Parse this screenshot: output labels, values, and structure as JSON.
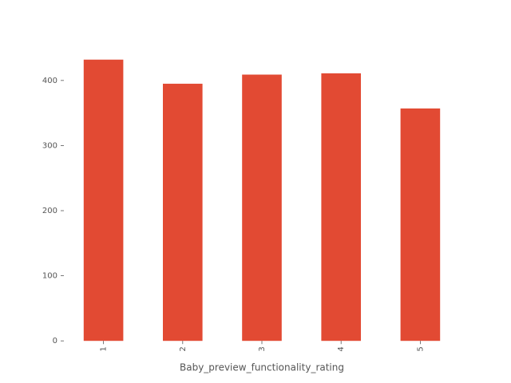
{
  "chart_data": {
    "type": "bar",
    "x_label": "Baby_preview_functionality_rating",
    "categories": [
      "1",
      "2",
      "3",
      "4",
      "5"
    ],
    "values": [
      432,
      395,
      409,
      411,
      357
    ],
    "color": "#E24A33",
    "ylim": [
      0,
      453
    ],
    "yticks": [
      0,
      100,
      200,
      300,
      400
    ],
    "grid": false
  }
}
